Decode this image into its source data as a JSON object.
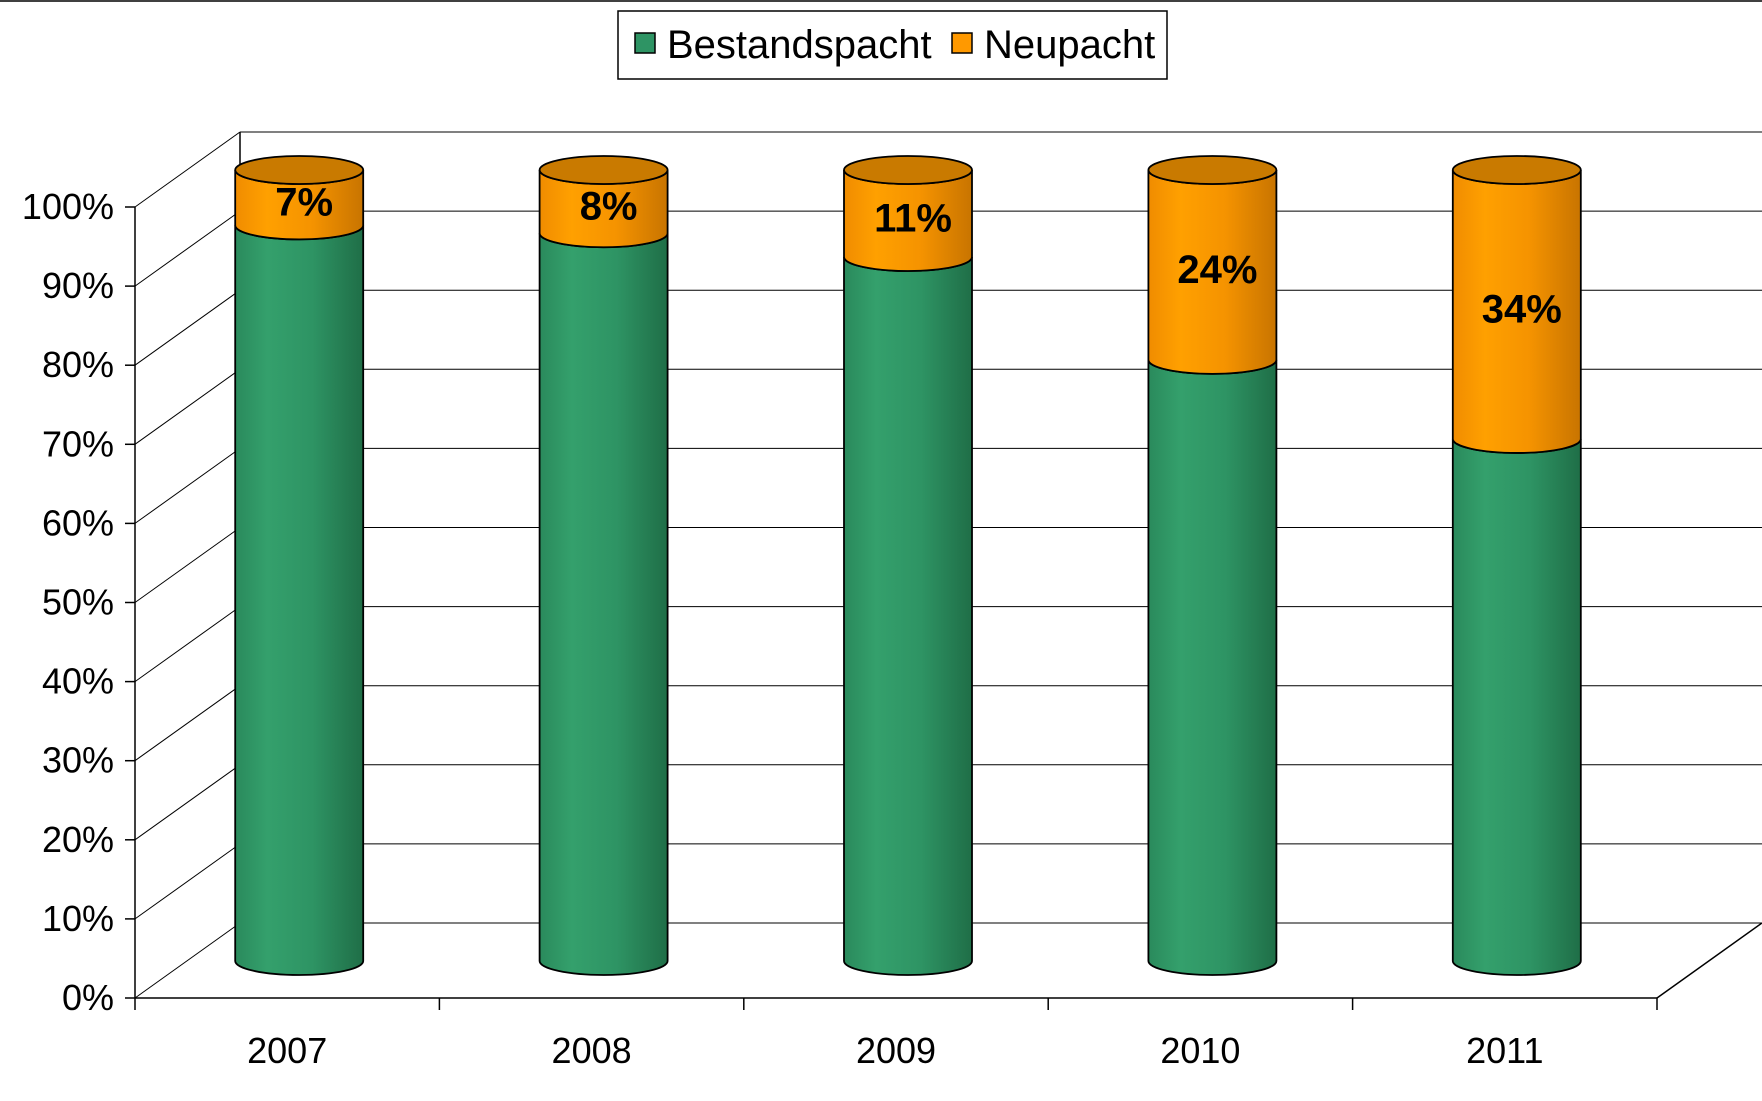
{
  "chart_data": {
    "type": "bar",
    "stacked": true,
    "percent": true,
    "three_d": true,
    "categories": [
      "2007",
      "2008",
      "2009",
      "2010",
      "2011"
    ],
    "series": [
      {
        "name": "Bestandspacht",
        "values": [
          93,
          92,
          89,
          76,
          66
        ],
        "color": "#2e9464"
      },
      {
        "name": "Neupacht",
        "values": [
          7,
          8,
          11,
          24,
          34
        ],
        "color": "#ff9900",
        "data_labels": [
          "7%",
          "8%",
          "11%",
          "24%",
          "34%"
        ]
      }
    ],
    "ylim": [
      0,
      100
    ],
    "yticks": [
      "0%",
      "10%",
      "20%",
      "30%",
      "40%",
      "50%",
      "60%",
      "70%",
      "80%",
      "90%",
      "100%"
    ],
    "grid": true,
    "legend_position": "top-center"
  }
}
